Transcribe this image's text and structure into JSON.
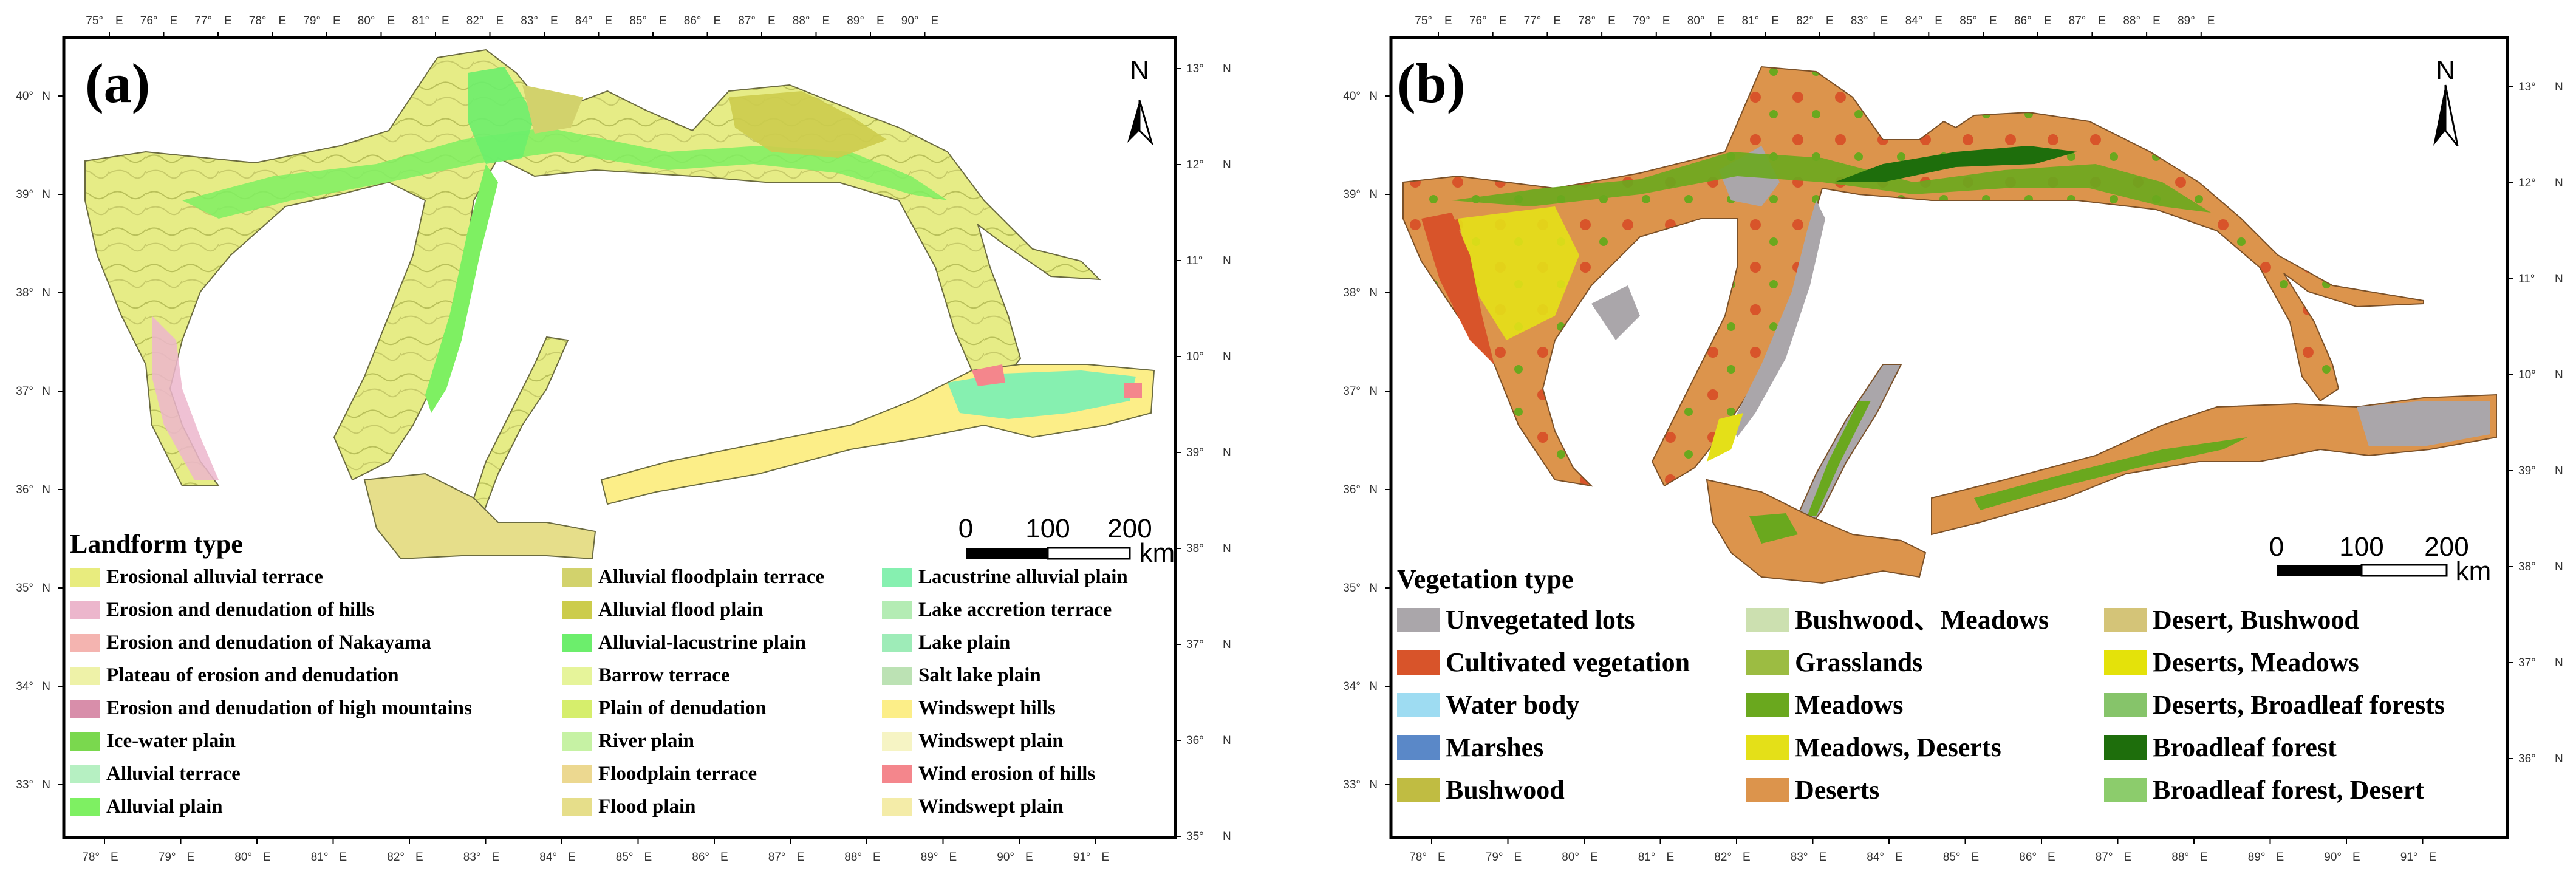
{
  "panel_a": {
    "label": "(a)",
    "north": "N",
    "top_ticks": [
      "75°",
      "76°",
      "77°",
      "78°",
      "79°",
      "80°",
      "81°",
      "82°",
      "83°",
      "84°",
      "85°",
      "86°",
      "87°",
      "88°",
      "89°",
      "90°"
    ],
    "top_tick_suffix": "E",
    "bottom_ticks": [
      "78°",
      "79°",
      "80°",
      "81°",
      "82°",
      "83°",
      "84°",
      "85°",
      "86°",
      "87°",
      "88°",
      "89°",
      "90°",
      "91°"
    ],
    "bottom_tick_suffix": "E",
    "left_ticks": [
      "40°",
      "39°",
      "38°",
      "37°",
      "36°",
      "35°",
      "34°",
      "33°"
    ],
    "left_tick_suffix": "N",
    "right_ticks": [
      "13°",
      "12°",
      "11°",
      "10°",
      "39°",
      "38°",
      "37°",
      "36°",
      "35°"
    ],
    "right_tick_suffix": "N",
    "scale": {
      "zero": "0",
      "mid": "100",
      "max": "200",
      "unit": "km"
    },
    "legend_title": "Landform type",
    "legend": [
      [
        {
          "label": "Erosional alluvial terrace",
          "color": "#e8ec7e"
        },
        {
          "label": "Erosion and denudation of hills",
          "color": "#ecb6cc"
        },
        {
          "label": "Erosion and denudation of Nakayama",
          "color": "#f4b4b0"
        },
        {
          "label": "Plateau of erosion and denudation",
          "color": "#eef2a8"
        },
        {
          "label": "Erosion and denudation of high mountains",
          "color": "#d88eaa"
        },
        {
          "label": "Ice-water plain",
          "color": "#7ad84e"
        },
        {
          "label": "Alluvial terrace",
          "color": "#b6f0c2"
        },
        {
          "label": "Alluvial plain",
          "color": "#7ef062"
        }
      ],
      [
        {
          "label": "Alluvial floodplain terrace",
          "color": "#d2d26c"
        },
        {
          "label": "Alluvial flood plain",
          "color": "#cccc4c"
        },
        {
          "label": "Alluvial-lacustrine plain",
          "color": "#6cee6c"
        },
        {
          "label": "Barrow terrace",
          "color": "#e6f49a"
        },
        {
          "label": "Plain of denudation",
          "color": "#d6ee6c"
        },
        {
          "label": "River plain",
          "color": "#c6f2a4"
        },
        {
          "label": "Floodplain terrace",
          "color": "#ecd890"
        },
        {
          "label": "Flood plain",
          "color": "#e6de8a"
        }
      ],
      [
        {
          "label": "Lacustrine alluvial plain",
          "color": "#86f0b0"
        },
        {
          "label": "Lake accretion terrace",
          "color": "#b4ecb4"
        },
        {
          "label": "Lake plain",
          "color": "#9eecb8"
        },
        {
          "label": "Salt lake plain",
          "color": "#bce2b4"
        },
        {
          "label": "Windswept hills",
          "color": "#fcee88"
        },
        {
          "label": "Windswept plain",
          "color": "#f6f4c4"
        },
        {
          "label": "Wind erosion of hills",
          "color": "#f4868c"
        },
        {
          "label": "Windswept plain",
          "color": "#f4eca8"
        }
      ]
    ]
  },
  "panel_b": {
    "label": "(b)",
    "north": "N",
    "top_ticks": [
      "75°",
      "76°",
      "77°",
      "78°",
      "79°",
      "80°",
      "81°",
      "82°",
      "83°",
      "84°",
      "85°",
      "86°",
      "87°",
      "88°",
      "89°"
    ],
    "top_tick_suffix": "E",
    "bottom_ticks": [
      "78°",
      "79°",
      "80°",
      "81°",
      "82°",
      "83°",
      "84°",
      "85°",
      "86°",
      "87°",
      "88°",
      "89°",
      "90°",
      "91°"
    ],
    "bottom_tick_suffix": "E",
    "left_ticks": [
      "40°",
      "39°",
      "38°",
      "37°",
      "36°",
      "35°",
      "34°",
      "33°"
    ],
    "left_tick_suffix": "N",
    "right_ticks": [
      "13°",
      "12°",
      "11°",
      "10°",
      "39°",
      "38°",
      "37°",
      "36°"
    ],
    "right_tick_suffix": "N",
    "scale": {
      "zero": "0",
      "mid": "100",
      "max": "200",
      "unit": "km"
    },
    "legend_title": "Vegetation type",
    "legend": [
      [
        {
          "label": "Unvegetated lots",
          "color": "#aaa6aa"
        },
        {
          "label": "Cultivated vegetation",
          "color": "#d8542a"
        },
        {
          "label": "Water body",
          "color": "#9edcf2"
        },
        {
          "label": "Marshes",
          "color": "#5a88c8"
        },
        {
          "label": "Bushwood",
          "color": "#c0bc42"
        }
      ],
      [
        {
          "label": "Bushwood、Meadows",
          "color": "#cce0b0"
        },
        {
          "label": "Grasslands",
          "color": "#9cbc42"
        },
        {
          "label": "Meadows",
          "color": "#6aa81e"
        },
        {
          "label": "Meadows, Deserts",
          "color": "#e4e018"
        },
        {
          "label": "Deserts",
          "color": "#dc944c"
        }
      ],
      [
        {
          "label": "Desert, Bushwood",
          "color": "#d4c478"
        },
        {
          "label": "Deserts, Meadows",
          "color": "#e4e20a"
        },
        {
          "label": "Deserts, Broadleaf forests",
          "color": "#86c46a"
        },
        {
          "label": "Broadleaf forest",
          "color": "#1e6e0c"
        },
        {
          "label": "Broadleaf forest, Desert",
          "color": "#8ccc6c"
        }
      ]
    ]
  }
}
